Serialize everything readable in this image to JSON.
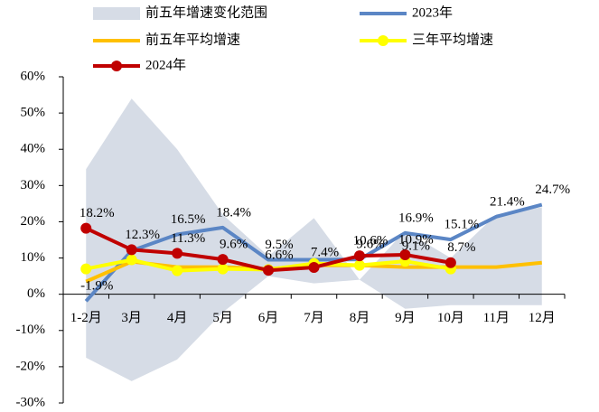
{
  "chart_data": {
    "type": "line",
    "categories": [
      "1-2月",
      "3月",
      "4月",
      "5月",
      "6月",
      "7月",
      "8月",
      "9月",
      "10月",
      "11月",
      "12月"
    ],
    "ylim": [
      -30,
      60
    ],
    "yticks": [
      {
        "value": -30,
        "label": "-30%"
      },
      {
        "value": -20,
        "label": "-20%"
      },
      {
        "value": -10,
        "label": "-10%"
      },
      {
        "value": 0,
        "label": "0%"
      },
      {
        "value": 10,
        "label": "10%"
      },
      {
        "value": 20,
        "label": "20%"
      },
      {
        "value": 30,
        "label": "30%"
      },
      {
        "value": 40,
        "label": "40%"
      },
      {
        "value": 50,
        "label": "50%"
      },
      {
        "value": 60,
        "label": "60%"
      }
    ],
    "band": {
      "name": "前五年增速变化范围",
      "color": "#d6dce6",
      "upper": [
        34.5,
        54,
        40,
        22,
        10.5,
        21,
        4,
        17.5,
        10,
        22,
        24
      ],
      "lower": [
        -17.5,
        -24,
        -18,
        -5,
        5,
        3,
        4,
        -4,
        -3,
        -3,
        -3
      ]
    },
    "series": [
      {
        "name": "2023年",
        "color": "#5b86c5",
        "marker": false,
        "values": [
          -1.9,
          12,
          16.5,
          18.4,
          9.5,
          9.5,
          9.6,
          16.9,
          15.1,
          21.4,
          24.7
        ],
        "value_labels": [
          "-1.9%",
          null,
          "16.5%",
          "18.4%",
          "9.5%",
          null,
          "9.6%",
          "16.9%",
          "15.1%",
          "21.4%",
          "24.7%"
        ]
      },
      {
        "name": "前五年平均增速",
        "color": "#ffc000",
        "marker": false,
        "values": [
          3.5,
          9,
          7.5,
          7.5,
          7,
          8,
          8,
          7.5,
          7.5,
          7.5,
          8.7
        ]
      },
      {
        "name": "三年平均增速",
        "color": "#ffff00",
        "marker": true,
        "values": [
          7,
          9.5,
          6.5,
          7,
          6.8,
          8.5,
          8,
          9.1,
          7,
          null,
          null
        ],
        "value_labels": [
          null,
          null,
          null,
          null,
          null,
          null,
          null,
          "9.1%",
          null,
          null,
          null
        ]
      },
      {
        "name": "2024年",
        "color": "#c00000",
        "marker": true,
        "values": [
          18.2,
          12.3,
          11.3,
          9.6,
          6.6,
          7.4,
          10.6,
          10.9,
          8.7,
          null,
          null
        ],
        "value_labels": [
          "18.2%",
          "12.3%",
          "11.3%",
          "9.6%",
          "6.6%",
          "7.4%",
          "10.6%",
          "10.9%",
          "8.7%",
          null,
          null
        ]
      }
    ]
  }
}
